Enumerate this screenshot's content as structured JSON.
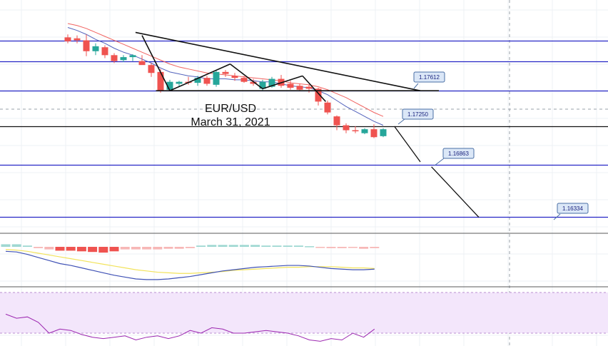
{
  "chart_data": {
    "type": "candlestick",
    "title_lines": [
      "EUR/USD",
      "March 31, 2021"
    ],
    "price_labels": [
      "1.17612",
      "1.17250",
      "1.16863",
      "1.16334"
    ],
    "levels": [
      {
        "value": 1.1761,
        "color": "#2626c6",
        "label": "1.17612"
      },
      {
        "value": 1.1725,
        "color": "#111111",
        "label": "1.17250"
      },
      {
        "value": 1.1686,
        "color": "#2626c6",
        "label": "1.16863"
      },
      {
        "value": 1.1633,
        "color": "#2626c6",
        "label": ""
      },
      {
        "value": 1.1812,
        "color": "#2626c6",
        "label": ""
      },
      {
        "value": 1.1791,
        "color": "#2626c6",
        "label": ""
      }
    ],
    "colors": {
      "up": "#26a69a",
      "down": "#ef5350",
      "trendline": "#111111",
      "support": "#2626c6",
      "rsi_band": "#f3e6fb",
      "rsi_line": "#9c27b0",
      "macd_line": "#3f51b5",
      "signal_line": "#f2e35c"
    },
    "candles": [
      {
        "o": 1.1815,
        "h": 1.1818,
        "l": 1.1809,
        "c": 1.1811
      },
      {
        "o": 1.1814,
        "h": 1.1817,
        "l": 1.1809,
        "c": 1.1812
      },
      {
        "o": 1.1812,
        "h": 1.1818,
        "l": 1.1796,
        "c": 1.1801
      },
      {
        "o": 1.1801,
        "h": 1.1809,
        "l": 1.1797,
        "c": 1.1806
      },
      {
        "o": 1.1805,
        "h": 1.1807,
        "l": 1.1794,
        "c": 1.1797
      },
      {
        "o": 1.1797,
        "h": 1.1799,
        "l": 1.1789,
        "c": 1.1791
      },
      {
        "o": 1.1792,
        "h": 1.1797,
        "l": 1.179,
        "c": 1.1795
      },
      {
        "o": 1.1795,
        "h": 1.1798,
        "l": 1.1791,
        "c": 1.1797
      },
      {
        "o": 1.1791,
        "h": 1.1797,
        "l": 1.1788,
        "c": 1.1787
      },
      {
        "o": 1.1787,
        "h": 1.1789,
        "l": 1.1775,
        "c": 1.1779
      },
      {
        "o": 1.178,
        "h": 1.1783,
        "l": 1.1759,
        "c": 1.1761
      },
      {
        "o": 1.1762,
        "h": 1.1772,
        "l": 1.1761,
        "c": 1.177
      },
      {
        "o": 1.1768,
        "h": 1.1771,
        "l": 1.1765,
        "c": 1.177
      },
      {
        "o": 1.177,
        "h": 1.1775,
        "l": 1.1767,
        "c": 1.1769
      },
      {
        "o": 1.1769,
        "h": 1.1776,
        "l": 1.1766,
        "c": 1.1774
      },
      {
        "o": 1.1774,
        "h": 1.1776,
        "l": 1.1766,
        "c": 1.1768
      },
      {
        "o": 1.1767,
        "h": 1.1782,
        "l": 1.1765,
        "c": 1.178
      },
      {
        "o": 1.178,
        "h": 1.1782,
        "l": 1.1775,
        "c": 1.1778
      },
      {
        "o": 1.1776,
        "h": 1.1779,
        "l": 1.1771,
        "c": 1.1774
      },
      {
        "o": 1.1774,
        "h": 1.1776,
        "l": 1.1769,
        "c": 1.177
      },
      {
        "o": 1.177,
        "h": 1.1773,
        "l": 1.1766,
        "c": 1.1768
      },
      {
        "o": 1.1763,
        "h": 1.1772,
        "l": 1.1761,
        "c": 1.177
      },
      {
        "o": 1.1765,
        "h": 1.1775,
        "l": 1.1764,
        "c": 1.1773
      },
      {
        "o": 1.1773,
        "h": 1.1777,
        "l": 1.1764,
        "c": 1.1766
      },
      {
        "o": 1.1768,
        "h": 1.1771,
        "l": 1.1762,
        "c": 1.1764
      },
      {
        "o": 1.1766,
        "h": 1.1768,
        "l": 1.1761,
        "c": 1.1762
      },
      {
        "o": 1.1765,
        "h": 1.1767,
        "l": 1.1759,
        "c": 1.1763
      },
      {
        "o": 1.1763,
        "h": 1.1764,
        "l": 1.1746,
        "c": 1.175
      },
      {
        "o": 1.1749,
        "h": 1.1751,
        "l": 1.1737,
        "c": 1.1739
      },
      {
        "o": 1.1735,
        "h": 1.1736,
        "l": 1.1721,
        "c": 1.1726
      },
      {
        "o": 1.1726,
        "h": 1.1728,
        "l": 1.1718,
        "c": 1.1721
      },
      {
        "o": 1.1721,
        "h": 1.1725,
        "l": 1.1718,
        "c": 1.172
      },
      {
        "o": 1.1718,
        "h": 1.1723,
        "l": 1.1717,
        "c": 1.1722
      },
      {
        "o": 1.1722,
        "h": 1.1727,
        "l": 1.1713,
        "c": 1.1714
      },
      {
        "o": 1.1715,
        "h": 1.1723,
        "l": 1.1714,
        "c": 1.1722
      }
    ],
    "ma_fast": [
      1.1825,
      1.1822,
      1.1818,
      1.1813,
      1.1809,
      1.1804,
      1.18,
      1.1797,
      1.1793,
      1.1789,
      1.1784,
      1.178,
      1.1778,
      1.1776,
      1.1775,
      1.1773,
      1.1773,
      1.1773,
      1.1772,
      1.1772,
      1.1771,
      1.177,
      1.177,
      1.1768,
      1.1766,
      1.1765,
      1.1764,
      1.1761,
      1.1757,
      1.1751,
      1.1745,
      1.174,
      1.1735,
      1.173,
      1.1726
    ],
    "ma_slow": [
      1.1829,
      1.1827,
      1.1824,
      1.182,
      1.1816,
      1.1812,
      1.1808,
      1.1804,
      1.18,
      1.1796,
      1.1792,
      1.1788,
      1.1785,
      1.1783,
      1.1781,
      1.1779,
      1.1778,
      1.1777,
      1.1776,
      1.1775,
      1.1774,
      1.1773,
      1.1772,
      1.1771,
      1.1769,
      1.1768,
      1.1767,
      1.1765,
      1.1762,
      1.1758,
      1.1754,
      1.1749,
      1.1744,
      1.1739,
      1.1735
    ],
    "macd_hist": [
      0.4,
      0.4,
      0.2,
      -0.2,
      -0.4,
      -0.6,
      -0.6,
      -0.7,
      -0.8,
      -0.9,
      -0.7,
      -0.4,
      -0.4,
      -0.4,
      -0.4,
      -0.3,
      -0.3,
      -0.2,
      0.2,
      0.3,
      0.3,
      0.3,
      0.3,
      0.3,
      0.2,
      0.2,
      0.2,
      0.2,
      0.1,
      -0.1,
      -0.2,
      -0.2,
      -0.1,
      -0.3,
      -0.2
    ],
    "macd_line": [
      -0.5,
      -0.6,
      -1.0,
      -1.5,
      -2.0,
      -2.5,
      -2.8,
      -3.2,
      -3.6,
      -4.0,
      -4.4,
      -4.7,
      -5.0,
      -5.1,
      -5.1,
      -5.0,
      -4.8,
      -4.6,
      -4.3,
      -4.0,
      -3.7,
      -3.5,
      -3.3,
      -3.1,
      -3.0,
      -2.9,
      -2.8,
      -2.8,
      -2.9,
      -3.1,
      -3.3,
      -3.4,
      -3.5,
      -3.5,
      -3.4
    ],
    "signal_line": [
      -0.2,
      -0.3,
      -0.5,
      -0.8,
      -1.1,
      -1.4,
      -1.7,
      -2.0,
      -2.3,
      -2.6,
      -2.9,
      -3.2,
      -3.5,
      -3.7,
      -3.9,
      -4.0,
      -4.1,
      -4.1,
      -4.0,
      -3.9,
      -3.8,
      -3.6,
      -3.5,
      -3.4,
      -3.3,
      -3.2,
      -3.1,
      -3.1,
      -3.0,
      -3.0,
      -3.0,
      -3.1,
      -3.2,
      -3.2,
      -3.3
    ],
    "rsi": [
      44,
      41,
      42,
      38,
      30,
      33,
      32,
      29,
      27,
      26,
      27,
      28,
      25,
      27,
      28,
      26,
      28,
      32,
      30,
      34,
      33,
      30,
      30,
      31,
      32,
      31,
      30,
      28,
      25,
      24,
      26,
      25,
      30,
      27,
      33
    ],
    "patterns": [
      "double-top",
      "descending-triangle",
      "projected-move"
    ]
  }
}
